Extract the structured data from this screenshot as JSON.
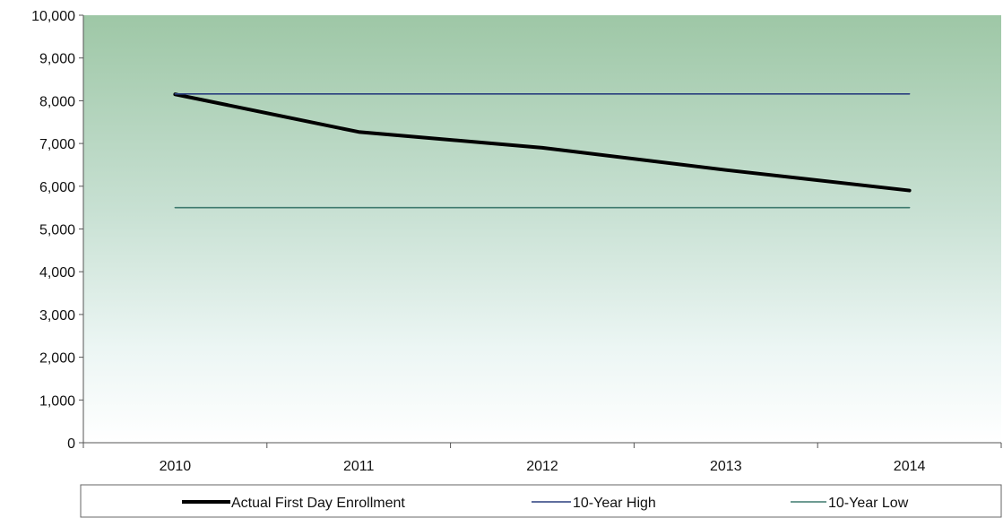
{
  "chart_data": {
    "type": "line",
    "title": "",
    "xlabel": "",
    "ylabel": "",
    "categories": [
      "2010",
      "2011",
      "2012",
      "2013",
      "2014"
    ],
    "ylim": [
      0,
      10000
    ],
    "y_ticks": [
      0,
      1000,
      2000,
      3000,
      4000,
      5000,
      6000,
      7000,
      8000,
      9000,
      10000
    ],
    "y_tick_labels": [
      "0",
      "1,000",
      "2,000",
      "3,000",
      "4,000",
      "5,000",
      "6,000",
      "7,000",
      "8,000",
      "9,000",
      "10,000"
    ],
    "grid": false,
    "legend_position": "bottom",
    "series": [
      {
        "name": "Actual First Day Enrollment",
        "values": [
          8150,
          7270,
          6900,
          6380,
          5900
        ],
        "color": "#000000"
      },
      {
        "name": "10-Year High",
        "values": [
          8160,
          8160,
          8160,
          8160,
          8160
        ],
        "color": "#2a3f7f"
      },
      {
        "name": "10-Year Low",
        "values": [
          5500,
          5500,
          5500,
          5500,
          5500
        ],
        "color": "#3f7a6e"
      }
    ],
    "background_gradient": [
      "#9ec7a6",
      "#ffffff"
    ]
  }
}
